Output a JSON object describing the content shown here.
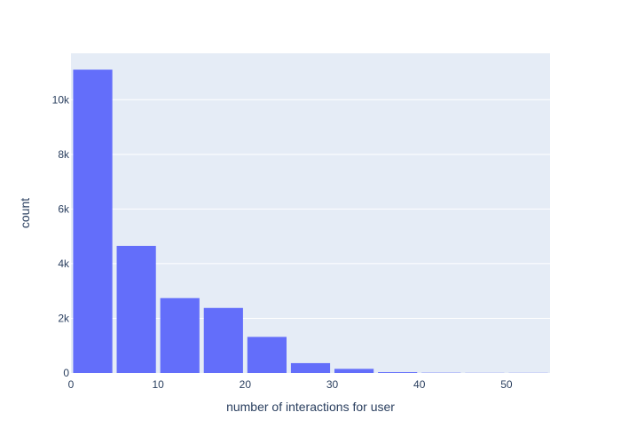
{
  "chart_data": {
    "type": "bar",
    "title": "",
    "xlabel": "number of interactions for user",
    "ylabel": "count",
    "xlim": [
      0,
      55
    ],
    "ylim": [
      0,
      11700
    ],
    "x_ticks": [
      {
        "value": 0,
        "label": "0"
      },
      {
        "value": 10,
        "label": "10"
      },
      {
        "value": 20,
        "label": "20"
      },
      {
        "value": 30,
        "label": "30"
      },
      {
        "value": 40,
        "label": "40"
      },
      {
        "value": 50,
        "label": "50"
      }
    ],
    "y_ticks": [
      {
        "value": 0,
        "label": "0"
      },
      {
        "value": 2000,
        "label": "2k"
      },
      {
        "value": 4000,
        "label": "4k"
      },
      {
        "value": 6000,
        "label": "6k"
      },
      {
        "value": 8000,
        "label": "8k"
      },
      {
        "value": 10000,
        "label": "10k"
      }
    ],
    "bin_width": 5,
    "bins": [
      {
        "x0": 0,
        "x1": 5,
        "count": 11100
      },
      {
        "x0": 5,
        "x1": 10,
        "count": 4650
      },
      {
        "x0": 10,
        "x1": 15,
        "count": 2740
      },
      {
        "x0": 15,
        "x1": 20,
        "count": 2380
      },
      {
        "x0": 20,
        "x1": 25,
        "count": 1320
      },
      {
        "x0": 25,
        "x1": 30,
        "count": 360
      },
      {
        "x0": 30,
        "x1": 35,
        "count": 150
      },
      {
        "x0": 35,
        "x1": 40,
        "count": 30
      },
      {
        "x0": 40,
        "x1": 45,
        "count": 10
      },
      {
        "x0": 45,
        "x1": 50,
        "count": 5
      },
      {
        "x0": 50,
        "x1": 55,
        "count": 5
      }
    ],
    "grid": true,
    "colors": {
      "bar": "#636efa",
      "plot_bg": "#e5ecf6",
      "grid": "#ffffff",
      "text": "#2a3f5f"
    }
  }
}
